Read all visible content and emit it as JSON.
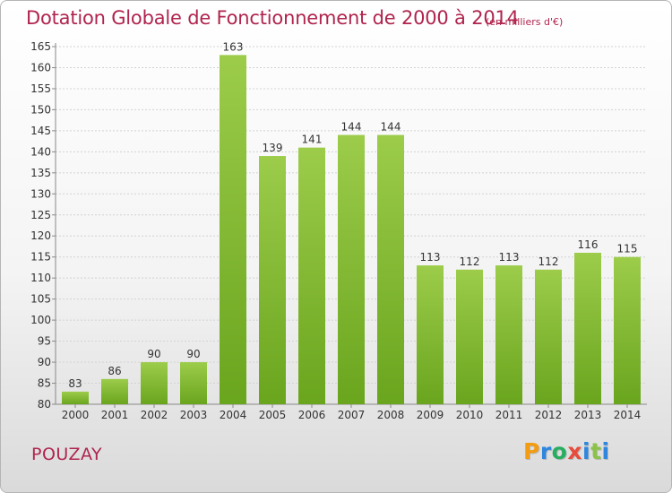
{
  "header": {
    "title": "Dotation Globale de Fonctionnement de 2000 à 2014",
    "unit": "(en milliers d'€)"
  },
  "footer": {
    "place": "POUZAY",
    "logo": [
      "P",
      "r",
      "o",
      "x",
      "i",
      "t",
      "i"
    ],
    "logo_colors": [
      "#f39c12",
      "#2e86de",
      "#27ae60",
      "#e74c3c",
      "#2e86de",
      "#8bc34a",
      "#2e86de"
    ]
  },
  "chart_data": {
    "type": "bar",
    "categories": [
      "2000",
      "2001",
      "2002",
      "2003",
      "2004",
      "2005",
      "2006",
      "2007",
      "2008",
      "2009",
      "2010",
      "2011",
      "2012",
      "2013",
      "2014"
    ],
    "values": [
      83,
      86,
      90,
      90,
      163,
      139,
      141,
      144,
      144,
      113,
      112,
      113,
      112,
      116,
      115
    ],
    "ylim": [
      80,
      165
    ],
    "ytick_step": 5,
    "grid": true,
    "bar_color_top": "#9ccc4a",
    "bar_color_bottom": "#6aa51e"
  }
}
